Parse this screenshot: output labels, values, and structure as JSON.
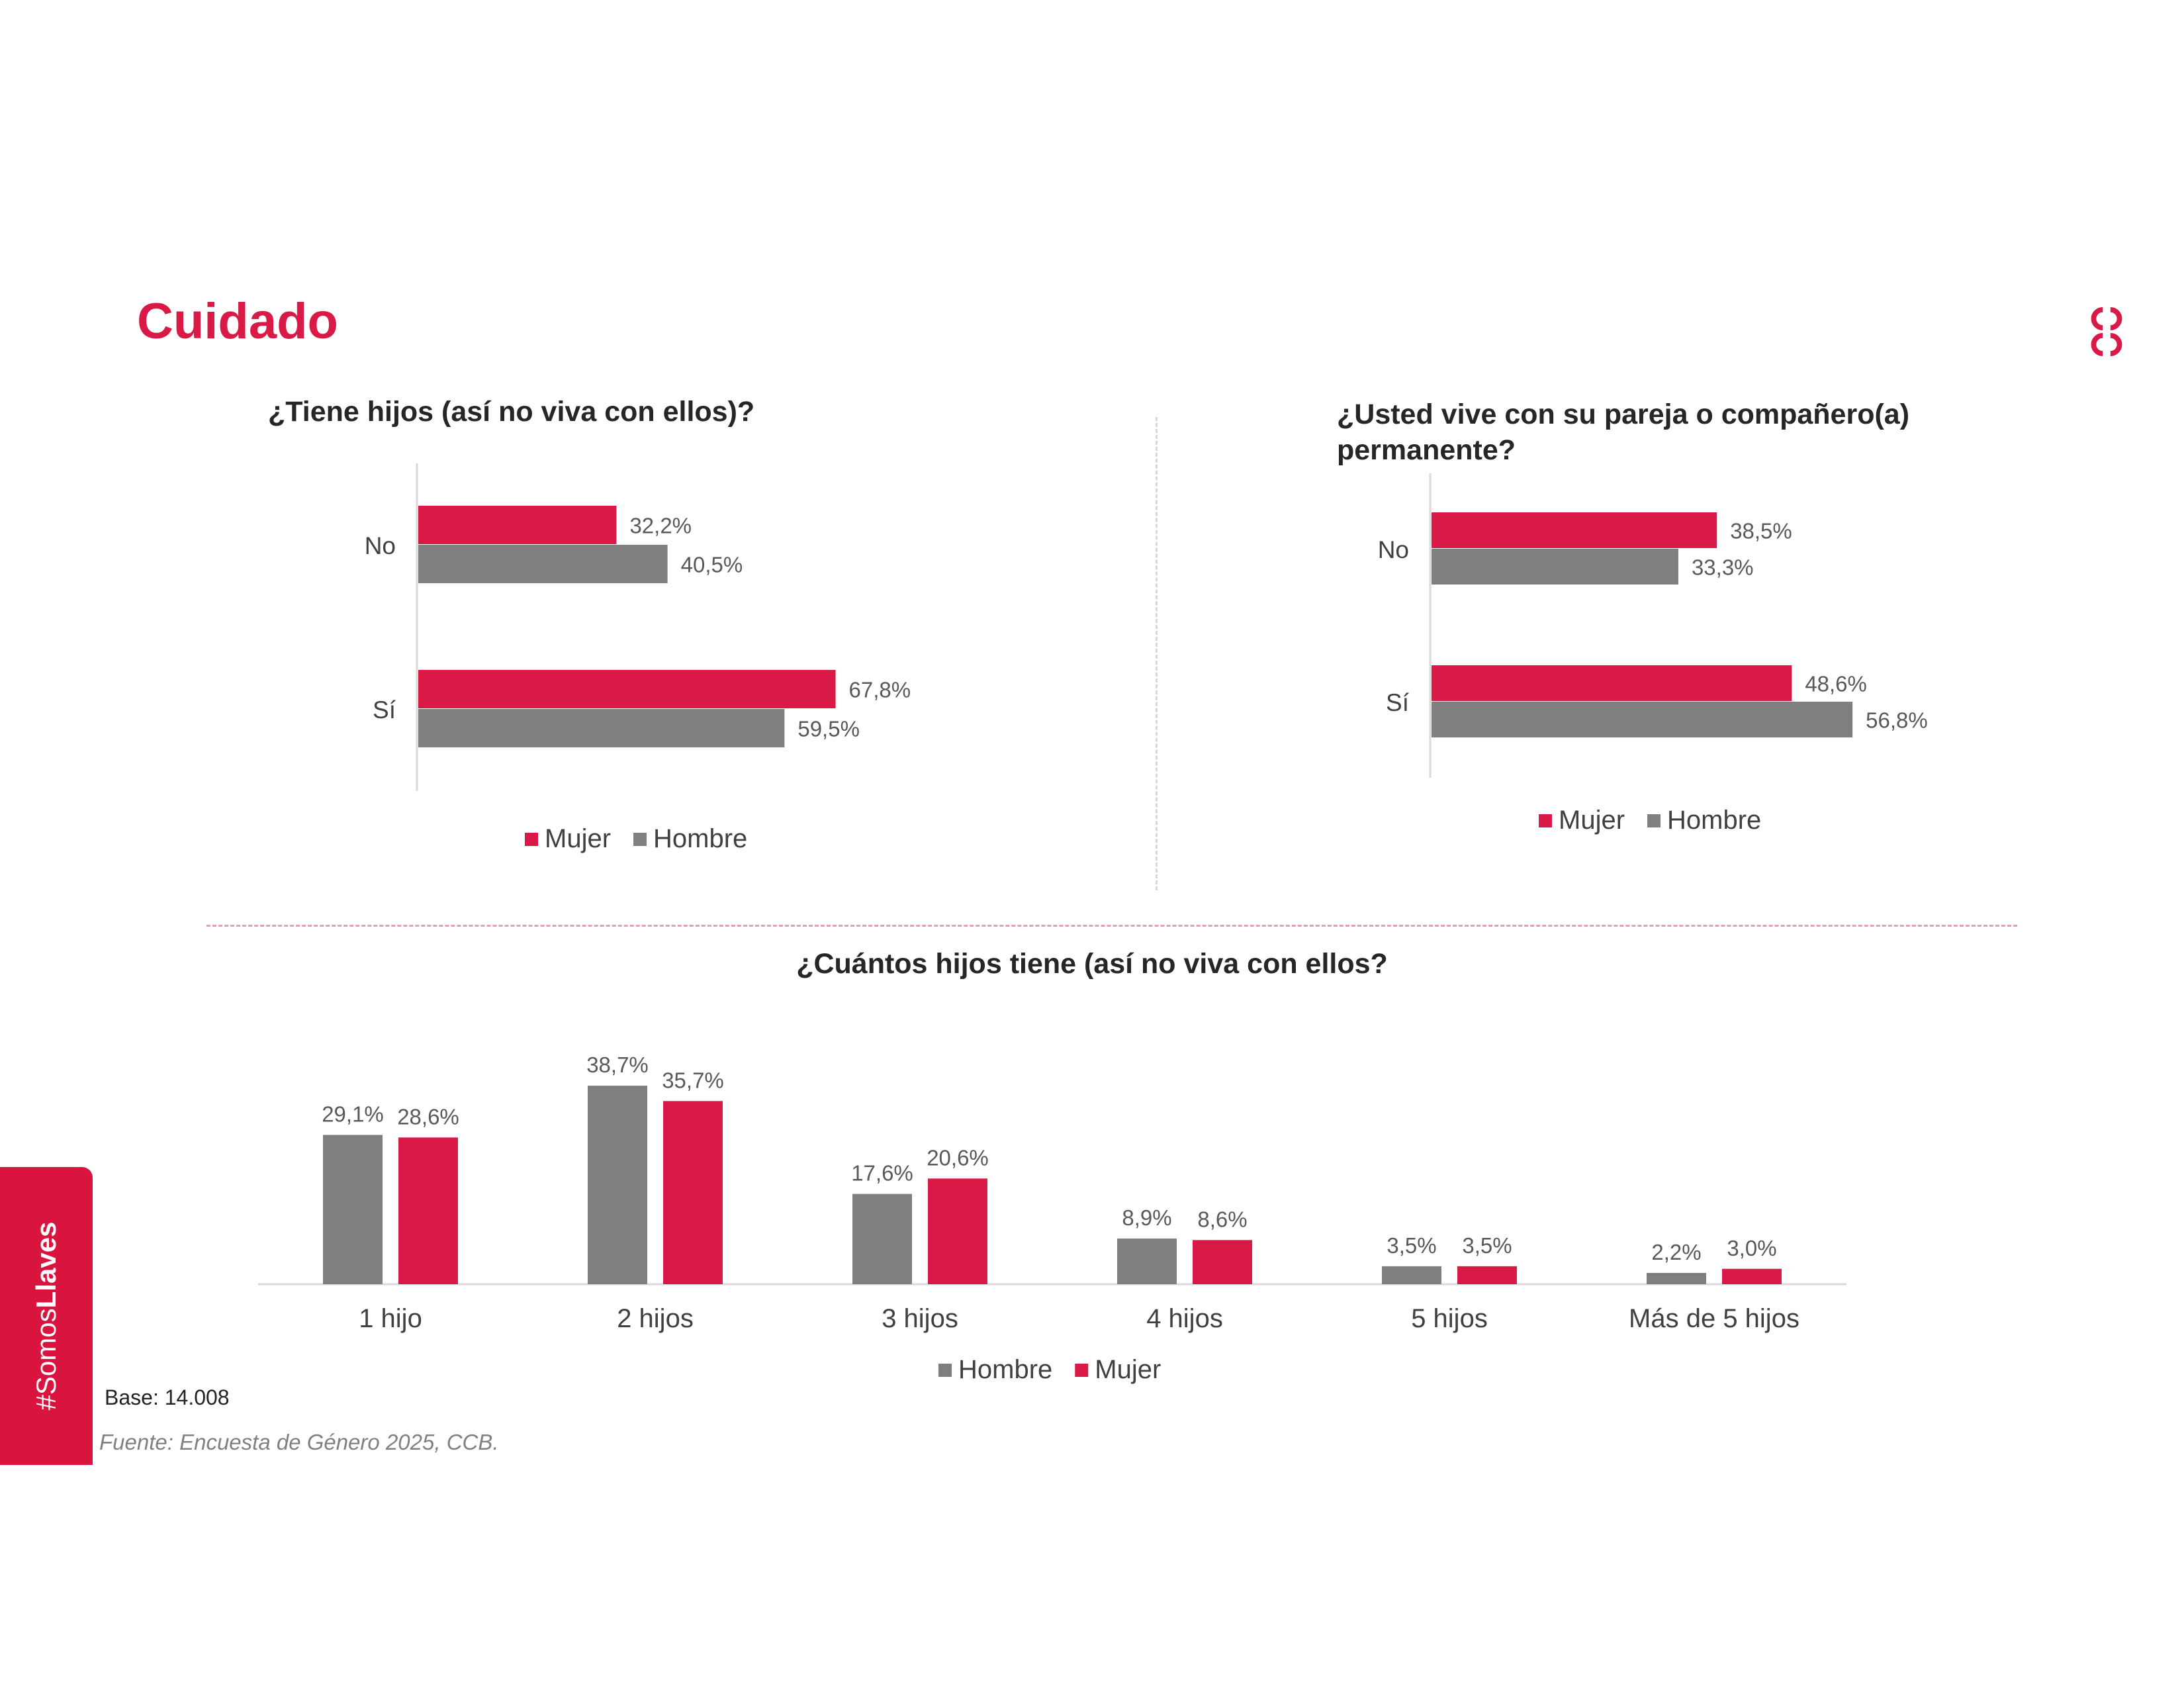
{
  "page": {
    "title": "Cuidado",
    "base": "Base: 14.008",
    "source": "Fuente: Encuesta de Género 2025, CCB.",
    "sidebar_prefix": "#Somos",
    "sidebar_bold": "Llaves"
  },
  "colors": {
    "mujer": "#d91a47",
    "hombre": "#7f7f7f",
    "axis": "#d9d9d9"
  },
  "chart_data": [
    {
      "type": "bar",
      "orientation": "horizontal",
      "title": "¿Tiene hijos (así no viva con ellos)?",
      "categories": [
        "No",
        "Sí"
      ],
      "series": [
        {
          "name": "Mujer",
          "values": [
            32.2,
            67.8
          ],
          "labels": [
            "32,2%",
            "67,8%"
          ]
        },
        {
          "name": "Hombre",
          "values": [
            40.5,
            59.5
          ],
          "labels": [
            "40,5%",
            "59,5%"
          ]
        }
      ],
      "legend": [
        "Mujer",
        "Hombre"
      ],
      "xlim": [
        0,
        100
      ],
      "legend_position": "bottom"
    },
    {
      "type": "bar",
      "orientation": "horizontal",
      "title": "¿Usted vive con su pareja o compañero(a) permanente?",
      "categories": [
        "No",
        "Sí"
      ],
      "series": [
        {
          "name": "Mujer",
          "values": [
            38.5,
            48.6
          ],
          "labels": [
            "38,5%",
            "48,6%"
          ]
        },
        {
          "name": "Hombre",
          "values": [
            33.3,
            56.8
          ],
          "labels": [
            "33,3%",
            "56,8%"
          ]
        }
      ],
      "legend": [
        "Mujer",
        "Hombre"
      ],
      "xlim": [
        0,
        100
      ],
      "legend_position": "bottom"
    },
    {
      "type": "bar",
      "orientation": "vertical",
      "title": "¿Cuántos hijos tiene (así no viva con ellos?",
      "categories": [
        "1 hijo",
        "2 hijos",
        "3 hijos",
        "4 hijos",
        "5 hijos",
        "Más de 5 hijos"
      ],
      "series": [
        {
          "name": "Hombre",
          "values": [
            29.1,
            38.7,
            17.6,
            8.9,
            3.5,
            2.2
          ],
          "labels": [
            "29,1%",
            "38,7%",
            "17,6%",
            "8,9%",
            "3,5%",
            "2,2%"
          ]
        },
        {
          "name": "Mujer",
          "values": [
            28.6,
            35.7,
            20.6,
            8.6,
            3.5,
            3.0
          ],
          "labels": [
            "28,6%",
            "35,7%",
            "20,6%",
            "8,6%",
            "3,5%",
            "3,0%"
          ]
        }
      ],
      "legend": [
        "Hombre",
        "Mujer"
      ],
      "ylim": [
        0,
        45
      ],
      "legend_position": "bottom"
    }
  ]
}
